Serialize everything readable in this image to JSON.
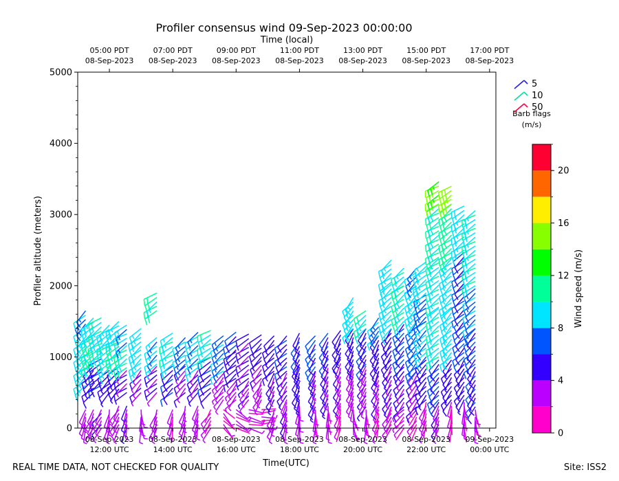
{
  "chart_data": {
    "type": "wind-barb",
    "title": "Profiler consensus wind 09-Sep-2023 00:00:00",
    "top_axis_label": "Time (local)",
    "xlabel": "Time(UTC)",
    "ylabel": "Profiler altitude (meters)",
    "colorbar_label": "Wind speed (m/s)",
    "xlim_hours_utc": [
      11.0,
      24.2
    ],
    "ylim": [
      0,
      5000
    ],
    "y_ticks": [
      0,
      1000,
      2000,
      3000,
      4000,
      5000
    ],
    "x_ticks_utc": [
      {
        "hour": 12,
        "line1": "08-Sep-2023",
        "line2": "12:00 UTC"
      },
      {
        "hour": 14,
        "line1": "08-Sep-2023",
        "line2": "14:00 UTC"
      },
      {
        "hour": 16,
        "line1": "08-Sep-2023",
        "line2": "16:00 UTC"
      },
      {
        "hour": 18,
        "line1": "08-Sep-2023",
        "line2": "18:00 UTC"
      },
      {
        "hour": 20,
        "line1": "08-Sep-2023",
        "line2": "20:00 UTC"
      },
      {
        "hour": 22,
        "line1": "08-Sep-2023",
        "line2": "22:00 UTC"
      },
      {
        "hour": 24,
        "line1": "09-Sep-2023",
        "line2": "00:00 UTC"
      }
    ],
    "x_ticks_local": [
      {
        "hour": 12,
        "line1": "05:00 PDT",
        "line2": "08-Sep-2023"
      },
      {
        "hour": 14,
        "line1": "07:00 PDT",
        "line2": "08-Sep-2023"
      },
      {
        "hour": 16,
        "line1": "09:00 PDT",
        "line2": "08-Sep-2023"
      },
      {
        "hour": 18,
        "line1": "11:00 PDT",
        "line2": "08-Sep-2023"
      },
      {
        "hour": 20,
        "line1": "13:00 PDT",
        "line2": "08-Sep-2023"
      },
      {
        "hour": 22,
        "line1": "15:00 PDT",
        "line2": "08-Sep-2023"
      },
      {
        "hour": 24,
        "line1": "17:00 PDT",
        "line2": "08-Sep-2023"
      }
    ],
    "legend": {
      "entries": [
        {
          "label": "5",
          "color": "#1f1fe6"
        },
        {
          "label": "10",
          "color": "#00e0a0"
        },
        {
          "label": "50",
          "color": "#ff0040"
        }
      ],
      "title_line1": "Barb flags",
      "title_line2": "(m/s)"
    },
    "colorbar": {
      "min": 0,
      "max": 22,
      "step": 2,
      "ticks": [
        0,
        4,
        8,
        12,
        16,
        20
      ],
      "colors": [
        "#ff00cc",
        "#bb00ff",
        "#3300ff",
        "#0055ff",
        "#00e5ff",
        "#00ff99",
        "#00ff00",
        "#88ff00",
        "#ffee00",
        "#ff6600",
        "#ff0033"
      ]
    },
    "barb_columns": [
      {
        "t": 11.25,
        "top": 1700,
        "seg": [
          [
            0,
            300,
            3,
            200
          ],
          [
            600,
            1400,
            9,
            230
          ],
          [
            1400,
            1700,
            8,
            230
          ]
        ]
      },
      {
        "t": 11.5,
        "top": 1600,
        "seg": [
          [
            0,
            300,
            3,
            205
          ],
          [
            500,
            900,
            5,
            225
          ],
          [
            900,
            1300,
            10,
            230
          ],
          [
            1300,
            1600,
            9,
            232
          ]
        ]
      },
      {
        "t": 11.75,
        "top": 1550,
        "seg": [
          [
            0,
            300,
            3,
            210
          ],
          [
            600,
            1000,
            5,
            230
          ],
          [
            1000,
            1300,
            10,
            235
          ],
          [
            1300,
            1550,
            9,
            232
          ]
        ]
      },
      {
        "t": 12.0,
        "top": 1450,
        "seg": [
          [
            0,
            300,
            3,
            195
          ],
          [
            500,
            850,
            5,
            228
          ],
          [
            850,
            1200,
            10,
            235
          ],
          [
            1200,
            1450,
            9,
            235
          ]
        ]
      },
      {
        "t": 12.3,
        "top": 1500,
        "seg": [
          [
            0,
            350,
            3,
            210
          ],
          [
            550,
            900,
            5,
            225
          ],
          [
            900,
            1250,
            10,
            235
          ],
          [
            1250,
            1500,
            9,
            235
          ]
        ]
      },
      {
        "t": 12.55,
        "top": 1450,
        "seg": [
          [
            0,
            350,
            3,
            190
          ],
          [
            500,
            850,
            4,
            230
          ],
          [
            850,
            1200,
            10,
            232
          ],
          [
            1200,
            1450,
            8,
            235
          ]
        ]
      },
      {
        "t": 13.0,
        "top": 1400,
        "seg": [
          [
            0,
            300,
            3,
            180
          ],
          [
            500,
            850,
            4,
            225
          ],
          [
            850,
            1150,
            9,
            232
          ],
          [
            1150,
            1400,
            9,
            235
          ]
        ]
      },
      {
        "t": 13.5,
        "top": 1900,
        "seg": [
          [
            0,
            300,
            3,
            200
          ],
          [
            500,
            900,
            4,
            230
          ],
          [
            900,
            1300,
            8,
            230
          ],
          [
            1650,
            1900,
            10,
            235
          ]
        ]
      },
      {
        "t": 14.0,
        "top": 1350,
        "seg": [
          [
            0,
            300,
            2,
            190
          ],
          [
            500,
            900,
            5,
            225
          ],
          [
            900,
            1350,
            9,
            235
          ]
        ]
      },
      {
        "t": 14.4,
        "top": 1300,
        "seg": [
          [
            0,
            350,
            3,
            200
          ],
          [
            500,
            900,
            4,
            225
          ],
          [
            900,
            1300,
            8,
            235
          ]
        ]
      },
      {
        "t": 14.8,
        "top": 1350,
        "seg": [
          [
            0,
            350,
            3,
            195
          ],
          [
            500,
            850,
            4,
            220
          ],
          [
            850,
            1350,
            8,
            235
          ]
        ]
      },
      {
        "t": 15.2,
        "top": 1400,
        "seg": [
          [
            0,
            300,
            2,
            210
          ],
          [
            500,
            1000,
            5,
            230
          ],
          [
            1000,
            1400,
            9,
            235
          ]
        ]
      },
      {
        "t": 15.6,
        "top": 1350,
        "seg": [
          [
            0,
            300,
            2,
            140
          ],
          [
            400,
            800,
            3,
            225
          ],
          [
            800,
            1350,
            8,
            235
          ]
        ]
      },
      {
        "t": 16.0,
        "top": 1400,
        "seg": [
          [
            0,
            300,
            2,
            120
          ],
          [
            400,
            700,
            3,
            220
          ],
          [
            700,
            1100,
            5,
            230
          ],
          [
            1100,
            1400,
            6,
            232
          ]
        ]
      },
      {
        "t": 16.4,
        "top": 1350,
        "seg": [
          [
            0,
            300,
            2,
            100
          ],
          [
            400,
            700,
            3,
            215
          ],
          [
            700,
            1350,
            4,
            230
          ]
        ]
      },
      {
        "t": 16.8,
        "top": 1350,
        "seg": [
          [
            0,
            300,
            2,
            90
          ],
          [
            400,
            700,
            3,
            210
          ],
          [
            700,
            1000,
            4,
            225
          ],
          [
            1000,
            1350,
            5,
            230
          ]
        ]
      },
      {
        "t": 17.2,
        "top": 1350,
        "seg": [
          [
            0,
            300,
            3,
            200
          ],
          [
            400,
            800,
            4,
            205
          ],
          [
            800,
            1350,
            5,
            225
          ]
        ]
      },
      {
        "t": 17.6,
        "top": 1300,
        "seg": [
          [
            0,
            400,
            3,
            195
          ],
          [
            400,
            800,
            4,
            210
          ],
          [
            800,
            1300,
            5,
            225
          ]
        ]
      },
      {
        "t": 18.0,
        "top": 1350,
        "seg": [
          [
            0,
            400,
            3,
            190
          ],
          [
            400,
            900,
            5,
            205
          ],
          [
            900,
            1350,
            6,
            210
          ]
        ]
      },
      {
        "t": 18.5,
        "top": 1300,
        "seg": [
          [
            0,
            300,
            2,
            180
          ],
          [
            300,
            800,
            4,
            200
          ],
          [
            800,
            1300,
            6,
            215
          ]
        ]
      },
      {
        "t": 18.9,
        "top": 1350,
        "seg": [
          [
            0,
            350,
            2,
            175
          ],
          [
            350,
            900,
            4,
            200
          ],
          [
            900,
            1350,
            5,
            205
          ]
        ]
      },
      {
        "t": 19.3,
        "top": 1400,
        "seg": [
          [
            0,
            350,
            2,
            200
          ],
          [
            350,
            1000,
            4,
            205
          ],
          [
            1000,
            1400,
            5,
            210
          ]
        ]
      },
      {
        "t": 19.7,
        "top": 1850,
        "seg": [
          [
            0,
            300,
            2,
            170
          ],
          [
            300,
            900,
            3,
            200
          ],
          [
            900,
            1400,
            5,
            205
          ],
          [
            1400,
            1850,
            9,
            220
          ]
        ]
      },
      {
        "t": 20.1,
        "top": 1700,
        "seg": [
          [
            0,
            300,
            2,
            175
          ],
          [
            300,
            900,
            3,
            205
          ],
          [
            900,
            1400,
            5,
            210
          ],
          [
            1400,
            1700,
            9,
            225
          ]
        ]
      },
      {
        "t": 20.5,
        "top": 1600,
        "seg": [
          [
            0,
            300,
            2,
            200
          ],
          [
            300,
            800,
            4,
            205
          ],
          [
            800,
            1300,
            5,
            210
          ],
          [
            1300,
            1600,
            8,
            225
          ]
        ]
      },
      {
        "t": 20.9,
        "top": 2400,
        "seg": [
          [
            0,
            300,
            2,
            210
          ],
          [
            300,
            900,
            4,
            210
          ],
          [
            900,
            1400,
            5,
            215
          ],
          [
            1400,
            2050,
            9,
            230
          ],
          [
            2050,
            2400,
            9,
            232
          ]
        ]
      },
      {
        "t": 21.3,
        "top": 2300,
        "seg": [
          [
            0,
            300,
            2,
            220
          ],
          [
            300,
            900,
            4,
            215
          ],
          [
            900,
            1500,
            6,
            220
          ],
          [
            1500,
            2000,
            10,
            228
          ],
          [
            2000,
            2300,
            9,
            230
          ]
        ]
      },
      {
        "t": 21.7,
        "top": 2300,
        "seg": [
          [
            0,
            300,
            2,
            215
          ],
          [
            300,
            800,
            4,
            220
          ],
          [
            800,
            1500,
            7,
            225
          ],
          [
            1500,
            2000,
            9,
            230
          ],
          [
            2000,
            2300,
            8,
            232
          ]
        ]
      },
      {
        "t": 22.0,
        "top": 2350,
        "seg": [
          [
            0,
            400,
            2,
            200
          ],
          [
            400,
            1000,
            5,
            220
          ],
          [
            1000,
            1500,
            8,
            228
          ],
          [
            1500,
            1900,
            7,
            230
          ],
          [
            1900,
            2350,
            9,
            235
          ]
        ]
      },
      {
        "t": 22.4,
        "top": 3500,
        "seg": [
          [
            0,
            400,
            3,
            200
          ],
          [
            400,
            1000,
            6,
            220
          ],
          [
            1000,
            1700,
            9,
            230
          ],
          [
            1700,
            2400,
            9,
            232
          ],
          [
            2400,
            3150,
            10,
            235
          ],
          [
            3150,
            3500,
            14,
            238
          ]
        ]
      },
      {
        "t": 22.8,
        "top": 3450,
        "seg": [
          [
            0,
            400,
            2,
            190
          ],
          [
            400,
            1000,
            5,
            220
          ],
          [
            1000,
            1700,
            9,
            228
          ],
          [
            1700,
            2400,
            9,
            232
          ],
          [
            2400,
            3150,
            11,
            236
          ],
          [
            3150,
            3450,
            15,
            238
          ]
        ]
      },
      {
        "t": 23.2,
        "top": 3150,
        "seg": [
          [
            0,
            400,
            2,
            180
          ],
          [
            400,
            1000,
            5,
            215
          ],
          [
            1000,
            1600,
            6,
            225
          ],
          [
            1600,
            2500,
            6,
            230
          ],
          [
            2500,
            3150,
            9,
            235
          ]
        ]
      },
      {
        "t": 23.55,
        "top": 3100,
        "seg": [
          [
            0,
            300,
            2,
            170
          ],
          [
            300,
            900,
            5,
            210
          ],
          [
            900,
            1400,
            6,
            220
          ],
          [
            1400,
            2000,
            7,
            228
          ],
          [
            2000,
            3100,
            9,
            235
          ]
        ]
      }
    ]
  },
  "footer": {
    "left": "REAL TIME DATA, NOT CHECKED FOR QUALITY",
    "right": "Site: ISS2"
  }
}
